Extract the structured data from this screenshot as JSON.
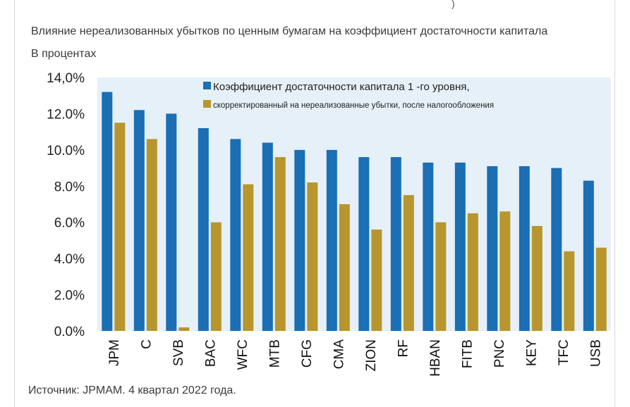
{
  "page": {
    "title": "Влияние нереализованных убытков по ценным бумагам на коэффициент достаточности капитала",
    "subtitle": "В процентах",
    "source": "Источник: JPMAM. 4 квартал 2022 года."
  },
  "colors": {
    "plot_bg": "#e6f0f8",
    "series1": "#1a6fb5",
    "series2": "#b8962e"
  },
  "chart_data": {
    "type": "bar",
    "title": "Влияние нереализованных убытков по ценным бумагам на коэффициент достаточности капитала",
    "ylabel": "В процентах",
    "xlabel": "",
    "ylim": [
      0,
      14
    ],
    "yticks": [
      "0.0%",
      "2.0%",
      "4.0%",
      "6.0%",
      "8.0%",
      "10.0%",
      "12.0%",
      "14,0%"
    ],
    "legend_position": "top",
    "categories": [
      "JPM",
      "C",
      "SVB",
      "BAC",
      "WFC",
      "MTB",
      "CFG",
      "CMA",
      "ZION",
      "RF",
      "HBAN",
      "FITB",
      "PNC",
      "KEY",
      "TFC",
      "USB"
    ],
    "series": [
      {
        "name": "Коэффициент достаточности капитала 1 -го уровня,",
        "values": [
          13.2,
          12.2,
          12.0,
          11.2,
          10.6,
          10.4,
          10.0,
          10.0,
          9.6,
          9.6,
          9.3,
          9.3,
          9.1,
          9.1,
          9.0,
          8.3
        ]
      },
      {
        "name": "скорректированный на нереализованные убытки, после налогообложения",
        "values": [
          11.5,
          10.6,
          0.2,
          6.0,
          8.1,
          9.6,
          8.2,
          7.0,
          5.6,
          7.5,
          6.0,
          6.5,
          6.6,
          5.8,
          4.4,
          4.6
        ]
      }
    ]
  }
}
